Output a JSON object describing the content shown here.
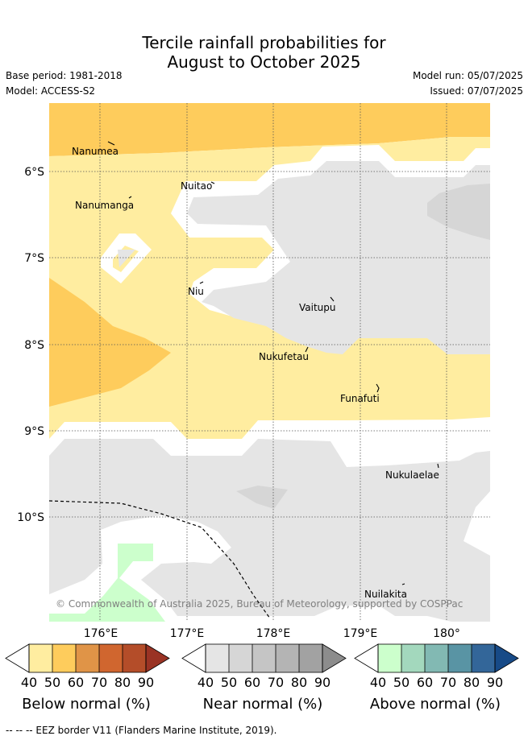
{
  "header": {
    "title_line1": "Tercile rainfall probabilities for",
    "title_line2": "August to October 2025",
    "base_period": "Base period: 1981-2018",
    "model": "Model: ACCESS-S2",
    "model_run": "Model run: 05/07/2025",
    "issued": "Issued: 07/07/2025"
  },
  "map": {
    "lon_labels": [
      "176°E",
      "177°E",
      "178°E",
      "179°E",
      "180°"
    ],
    "lat_labels": [
      "6°S",
      "7°S",
      "8°S",
      "9°S",
      "10°S"
    ],
    "places": [
      "Nanumea",
      "Nuitao",
      "Nanumanga",
      "Niu",
      "Vaitupu",
      "Nukufetau",
      "Funafuti",
      "Nukulaelae",
      "Nuilakita"
    ],
    "copyright": "© Commonwealth of Australia 2025, Bureau of Meteorology, supported by COSPPac",
    "colors": {
      "below_40": "#ffeda0",
      "below_50": "#fecc5c",
      "near_40": "#e5e5e5",
      "near_50": "#d6d6d6",
      "above_40": "#ccffcc"
    }
  },
  "colorbars": [
    {
      "label": "Below normal (%)",
      "ticks": [
        "40",
        "50",
        "60",
        "70",
        "80",
        "90"
      ],
      "colors": [
        "#ffeda0",
        "#fecc5c",
        "#e09447",
        "#d0662f",
        "#b44d29",
        "#9a3324"
      ]
    },
    {
      "label": "Near normal (%)",
      "ticks": [
        "40",
        "50",
        "60",
        "70",
        "80",
        "90"
      ],
      "colors": [
        "#e5e5e5",
        "#d6d6d6",
        "#c5c5c5",
        "#b4b4b4",
        "#a2a2a2",
        "#8c8c8c"
      ]
    },
    {
      "label": "Above normal (%)",
      "ticks": [
        "40",
        "50",
        "60",
        "70",
        "80",
        "90"
      ],
      "colors": [
        "#ccffcc",
        "#a3d8bd",
        "#82b9b3",
        "#5994a4",
        "#336699",
        "#174a87"
      ]
    }
  ],
  "footnote": "--  --  -- EEZ border V11 (Flanders Marine Institute, 2019)."
}
